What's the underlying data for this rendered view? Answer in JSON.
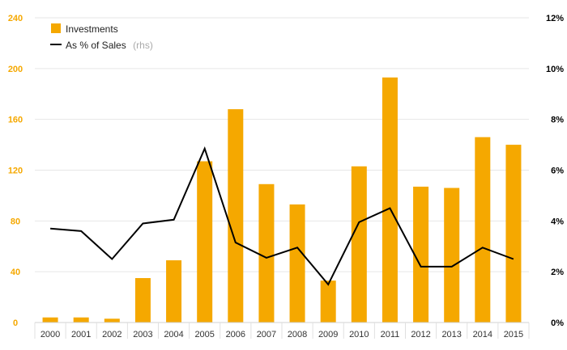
{
  "colors": {
    "bar": "#f5a800",
    "line": "#000000",
    "left_axis_text": "#f5a800",
    "right_axis_text": "#000000",
    "grid": "#e6e6e6"
  },
  "chart_data": {
    "type": "bar",
    "categories": [
      "2000",
      "2001",
      "2002",
      "2003",
      "2004",
      "2005",
      "2006",
      "2007",
      "2008",
      "2009",
      "2010",
      "2011",
      "2012",
      "2013",
      "2014",
      "2015"
    ],
    "series": [
      {
        "name": "Investments",
        "type": "bar",
        "axis": "left",
        "values": [
          4,
          4,
          3,
          35,
          49,
          127,
          168,
          109,
          93,
          33,
          123,
          193,
          107,
          106,
          146,
          140
        ]
      },
      {
        "name": "As % of Sales",
        "type": "line",
        "axis": "right",
        "values": [
          3.7,
          3.6,
          2.5,
          3.9,
          4.05,
          6.85,
          3.15,
          2.55,
          2.95,
          1.5,
          3.95,
          4.5,
          2.2,
          2.2,
          2.95,
          2.5
        ]
      }
    ],
    "legend": [
      {
        "label": "Investments",
        "note": ""
      },
      {
        "label": "As % of Sales",
        "note": "(rhs)"
      }
    ],
    "y_left": {
      "lim": [
        0,
        240
      ],
      "ticks": [
        "0",
        "40",
        "80",
        "120",
        "160",
        "200",
        "240"
      ]
    },
    "y_right": {
      "lim": [
        0,
        12
      ],
      "ticks": [
        "0%",
        "2%",
        "4%",
        "6%",
        "8%",
        "10%",
        "12%"
      ]
    },
    "grid": true,
    "legend_position": "top-left"
  }
}
